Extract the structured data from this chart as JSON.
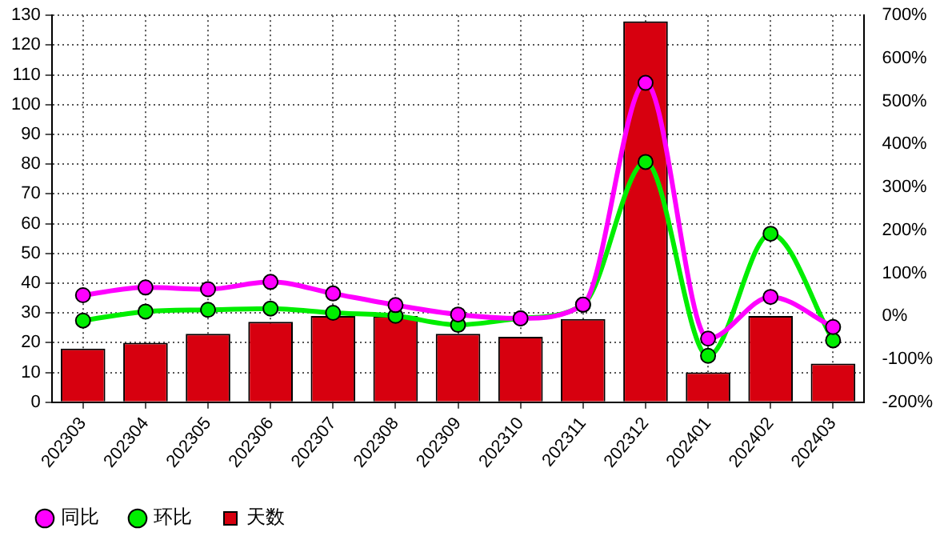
{
  "chart_data": {
    "type": "bar",
    "categories": [
      "202303",
      "202304",
      "202305",
      "202306",
      "202307",
      "202308",
      "202309",
      "202310",
      "202311",
      "202312",
      "202401",
      "202402",
      "202403"
    ],
    "series": [
      {
        "name": "同比",
        "type": "line",
        "axis": "y2",
        "color": "#ff00ff",
        "values": [
          49,
          67,
          63,
          80,
          53,
          26,
          4,
          -5,
          27,
          543,
          -52,
          45,
          -25
        ]
      },
      {
        "name": "环比",
        "type": "line",
        "axis": "y2",
        "color": "#00ee00",
        "values": [
          -10,
          11,
          15,
          18,
          8,
          1,
          -20,
          -5,
          27,
          359,
          -92,
          192,
          -56
        ]
      },
      {
        "name": "天数",
        "color": "#d7000f",
        "values": [
          18,
          20,
          23,
          27,
          29,
          29,
          23,
          22,
          28,
          128,
          10,
          29,
          13
        ]
      }
    ],
    "ylim": [
      0,
      130
    ],
    "yticks": [
      0,
      10,
      20,
      30,
      40,
      50,
      60,
      70,
      80,
      90,
      100,
      110,
      120,
      130
    ],
    "y2lim": [
      -200,
      700
    ],
    "y2ticks": [
      {
        "value": -200,
        "label": "-200%"
      },
      {
        "value": -100,
        "label": "-100%"
      },
      {
        "value": 0,
        "label": "0%"
      },
      {
        "value": 100,
        "label": "100%"
      },
      {
        "value": 200,
        "label": "200%"
      },
      {
        "value": 300,
        "label": "300%"
      },
      {
        "value": 400,
        "label": "400%"
      },
      {
        "value": 500,
        "label": "500%"
      },
      {
        "value": 600,
        "label": "600%"
      },
      {
        "value": 700,
        "label": "700%"
      }
    ],
    "grid": true,
    "legend": "bottom left",
    "marker": "circle"
  }
}
